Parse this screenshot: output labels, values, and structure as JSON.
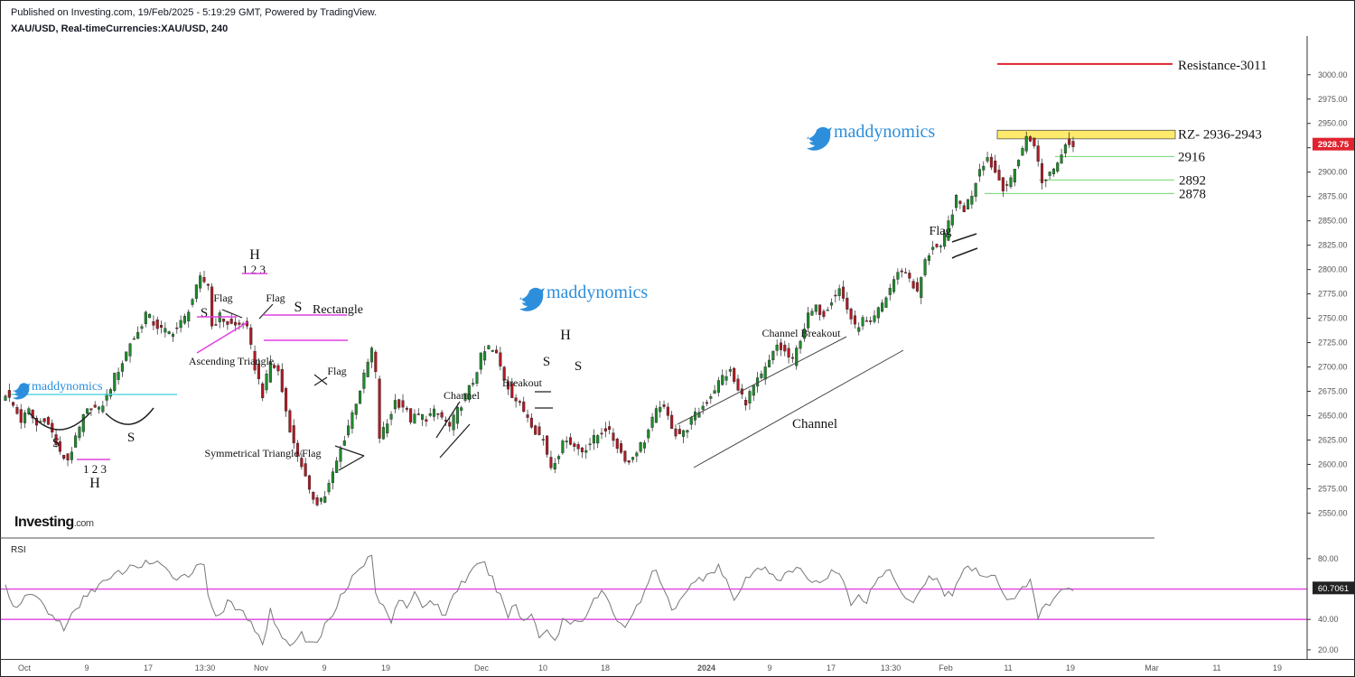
{
  "header": {
    "published": "Published on Investing.com, 19/Feb/2025 - 5:19:29 GMT, Powered by TradingView.",
    "symbol": "XAU/USD, Real-timeCurrencies:XAU/USD, 240"
  },
  "logo": {
    "text": "Investing",
    "suffix": ".com"
  },
  "watermarks": [
    "maddynomics",
    "maddynomics",
    "maddynomics"
  ],
  "chart_data": {
    "type": "candlestick",
    "price_axis": {
      "ticks": [
        "3000.00",
        "2975.00",
        "2950.00",
        "2925.00",
        "2900.00",
        "2875.00",
        "2850.00",
        "2825.00",
        "2800.00",
        "2775.00",
        "2750.00",
        "2725.00",
        "2700.00",
        "2675.00",
        "2650.00",
        "2625.00",
        "2600.00",
        "2575.00",
        "2550.00"
      ],
      "ylim": [
        2530,
        3035
      ],
      "last_price": "2928.75",
      "last_price_color": "#e0232f"
    },
    "time_axis": {
      "labels": [
        "Oct",
        "9",
        "17",
        "13:30",
        "Nov",
        "9",
        "19",
        "Dec",
        "10",
        "18",
        "2024",
        "9",
        "17",
        "13:30",
        "Feb",
        "11",
        "19",
        "Mar",
        "11",
        "19"
      ],
      "bold": "2024"
    },
    "price_path": [
      [
        0,
        2673
      ],
      [
        2,
        2660
      ],
      [
        4,
        2645
      ],
      [
        6,
        2655
      ],
      [
        8,
        2640
      ],
      [
        10,
        2648
      ],
      [
        12,
        2632
      ],
      [
        14,
        2610
      ],
      [
        16,
        2605
      ],
      [
        18,
        2625
      ],
      [
        20,
        2648
      ],
      [
        22,
        2660
      ],
      [
        24,
        2655
      ],
      [
        26,
        2670
      ],
      [
        28,
        2690
      ],
      [
        30,
        2705
      ],
      [
        32,
        2725
      ],
      [
        34,
        2735
      ],
      [
        36,
        2755
      ],
      [
        38,
        2745
      ],
      [
        40,
        2738
      ],
      [
        42,
        2735
      ],
      [
        44,
        2740
      ],
      [
        46,
        2750
      ],
      [
        48,
        2770
      ],
      [
        50,
        2790
      ],
      [
        52,
        2785
      ],
      [
        53,
        2742
      ],
      [
        55,
        2752
      ],
      [
        57,
        2745
      ],
      [
        59,
        2742
      ],
      [
        61,
        2745
      ],
      [
        62,
        2738
      ],
      [
        64,
        2700
      ],
      [
        66,
        2672
      ],
      [
        68,
        2705
      ],
      [
        70,
        2695
      ],
      [
        72,
        2655
      ],
      [
        74,
        2620
      ],
      [
        76,
        2600
      ],
      [
        78,
        2570
      ],
      [
        80,
        2562
      ],
      [
        82,
        2568
      ],
      [
        84,
        2590
      ],
      [
        86,
        2615
      ],
      [
        88,
        2640
      ],
      [
        90,
        2665
      ],
      [
        92,
        2690
      ],
      [
        94,
        2718
      ],
      [
        95,
        2692
      ],
      [
        96,
        2628
      ],
      [
        98,
        2642
      ],
      [
        100,
        2665
      ],
      [
        102,
        2660
      ],
      [
        104,
        2646
      ],
      [
        106,
        2650
      ],
      [
        108,
        2648
      ],
      [
        110,
        2653
      ],
      [
        112,
        2648
      ],
      [
        114,
        2638
      ],
      [
        116,
        2655
      ],
      [
        118,
        2670
      ],
      [
        120,
        2685
      ],
      [
        122,
        2710
      ],
      [
        124,
        2720
      ],
      [
        126,
        2712
      ],
      [
        128,
        2688
      ],
      [
        130,
        2672
      ],
      [
        132,
        2660
      ],
      [
        134,
        2650
      ],
      [
        136,
        2635
      ],
      [
        138,
        2625
      ],
      [
        140,
        2598
      ],
      [
        142,
        2612
      ],
      [
        144,
        2628
      ],
      [
        146,
        2618
      ],
      [
        148,
        2614
      ],
      [
        150,
        2622
      ],
      [
        152,
        2630
      ],
      [
        154,
        2637
      ],
      [
        156,
        2626
      ],
      [
        158,
        2612
      ],
      [
        160,
        2602
      ],
      [
        162,
        2615
      ],
      [
        164,
        2625
      ],
      [
        166,
        2645
      ],
      [
        168,
        2662
      ],
      [
        170,
        2648
      ],
      [
        172,
        2632
      ],
      [
        174,
        2632
      ],
      [
        176,
        2645
      ],
      [
        178,
        2655
      ],
      [
        180,
        2665
      ],
      [
        182,
        2678
      ],
      [
        184,
        2690
      ],
      [
        186,
        2695
      ],
      [
        188,
        2675
      ],
      [
        190,
        2665
      ],
      [
        192,
        2680
      ],
      [
        194,
        2690
      ],
      [
        196,
        2705
      ],
      [
        198,
        2722
      ],
      [
        200,
        2715
      ],
      [
        202,
        2705
      ],
      [
        204,
        2730
      ],
      [
        206,
        2752
      ],
      [
        208,
        2760
      ],
      [
        210,
        2755
      ],
      [
        212,
        2770
      ],
      [
        214,
        2780
      ],
      [
        216,
        2760
      ],
      [
        218,
        2740
      ],
      [
        220,
        2748
      ],
      [
        222,
        2742
      ],
      [
        224,
        2758
      ],
      [
        226,
        2772
      ],
      [
        228,
        2790
      ],
      [
        230,
        2800
      ],
      [
        232,
        2792
      ],
      [
        234,
        2775
      ],
      [
        236,
        2808
      ],
      [
        238,
        2825
      ],
      [
        240,
        2820
      ],
      [
        242,
        2848
      ],
      [
        244,
        2872
      ],
      [
        246,
        2862
      ],
      [
        248,
        2878
      ],
      [
        250,
        2905
      ],
      [
        252,
        2915
      ],
      [
        254,
        2900
      ],
      [
        256,
        2885
      ],
      [
        258,
        2890
      ],
      [
        260,
        2915
      ],
      [
        262,
        2935
      ],
      [
        264,
        2930
      ],
      [
        266,
        2888
      ],
      [
        268,
        2900
      ],
      [
        270,
        2910
      ],
      [
        272,
        2932
      ],
      [
        274,
        2928
      ]
    ],
    "candle_count": 275,
    "resistance": {
      "label": "Resistance-3011",
      "value": 3011,
      "color": "#e0232f"
    },
    "rz_zone": {
      "label": "RZ- 2936-2943",
      "from": 2936,
      "to": 2943,
      "color": "#fde96b"
    },
    "support_levels": [
      {
        "label": "2916",
        "value": 2916
      },
      {
        "label": "2892",
        "value": 2892
      },
      {
        "label": "2878",
        "value": 2878
      }
    ],
    "patterns": [
      "S",
      "S",
      "1 2 3",
      "H",
      "H",
      "1 2 3",
      "S",
      "Flag",
      "Ascending Triangle",
      "Flag",
      "S",
      "Rectangle",
      "Flag",
      "Symmetrical Triangle/Flag",
      "Channel",
      "Breakout",
      "H",
      "S",
      "S",
      "Channel Breakout",
      "Channel",
      "Flag"
    ],
    "rsi": {
      "label": "RSI",
      "ticks": [
        "80.00",
        "40.00",
        "20.00"
      ],
      "ylim": [
        14,
        90
      ],
      "levels": [
        60,
        40
      ],
      "last_value": "60.7061",
      "path": [
        [
          0,
          62
        ],
        [
          3,
          45
        ],
        [
          6,
          58
        ],
        [
          9,
          52
        ],
        [
          12,
          42
        ],
        [
          15,
          35
        ],
        [
          18,
          45
        ],
        [
          21,
          57
        ],
        [
          24,
          63
        ],
        [
          27,
          66
        ],
        [
          30,
          72
        ],
        [
          33,
          74
        ],
        [
          36,
          78
        ],
        [
          39,
          76
        ],
        [
          42,
          70
        ],
        [
          45,
          68
        ],
        [
          48,
          72
        ],
        [
          51,
          77
        ],
        [
          52,
          58
        ],
        [
          54,
          42
        ],
        [
          57,
          50
        ],
        [
          60,
          46
        ],
        [
          62,
          42
        ],
        [
          64,
          30
        ],
        [
          66,
          26
        ],
        [
          68,
          45
        ],
        [
          70,
          35
        ],
        [
          72,
          24
        ],
        [
          74,
          26
        ],
        [
          76,
          30
        ],
        [
          78,
          24
        ],
        [
          80,
          25
        ],
        [
          82,
          36
        ],
        [
          84,
          45
        ],
        [
          86,
          56
        ],
        [
          88,
          64
        ],
        [
          90,
          70
        ],
        [
          92,
          76
        ],
        [
          94,
          84
        ],
        [
          95,
          55
        ],
        [
          97,
          48
        ],
        [
          99,
          40
        ],
        [
          101,
          55
        ],
        [
          103,
          50
        ],
        [
          105,
          56
        ],
        [
          107,
          46
        ],
        [
          109,
          54
        ],
        [
          111,
          48
        ],
        [
          113,
          42
        ],
        [
          115,
          58
        ],
        [
          117,
          63
        ],
        [
          119,
          70
        ],
        [
          121,
          74
        ],
        [
          123,
          76
        ],
        [
          125,
          66
        ],
        [
          127,
          54
        ],
        [
          129,
          44
        ],
        [
          131,
          49
        ],
        [
          133,
          38
        ],
        [
          135,
          44
        ],
        [
          137,
          30
        ],
        [
          139,
          34
        ],
        [
          141,
          25
        ],
        [
          143,
          40
        ],
        [
          145,
          38
        ],
        [
          147,
          40
        ],
        [
          149,
          43
        ],
        [
          151,
          52
        ],
        [
          153,
          58
        ],
        [
          155,
          50
        ],
        [
          157,
          40
        ],
        [
          159,
          36
        ],
        [
          161,
          44
        ],
        [
          163,
          50
        ],
        [
          165,
          66
        ],
        [
          167,
          72
        ],
        [
          169,
          58
        ],
        [
          171,
          46
        ],
        [
          173,
          54
        ],
        [
          175,
          60
        ],
        [
          177,
          64
        ],
        [
          179,
          68
        ],
        [
          181,
          72
        ],
        [
          183,
          75
        ],
        [
          185,
          66
        ],
        [
          187,
          50
        ],
        [
          189,
          62
        ],
        [
          191,
          68
        ],
        [
          193,
          72
        ],
        [
          195,
          75
        ],
        [
          197,
          70
        ],
        [
          199,
          66
        ],
        [
          201,
          70
        ],
        [
          203,
          74
        ],
        [
          205,
          69
        ],
        [
          207,
          66
        ],
        [
          209,
          64
        ],
        [
          211,
          70
        ],
        [
          213,
          72
        ],
        [
          215,
          66
        ],
        [
          217,
          48
        ],
        [
          219,
          58
        ],
        [
          221,
          52
        ],
        [
          223,
          64
        ],
        [
          225,
          70
        ],
        [
          227,
          72
        ],
        [
          229,
          62
        ],
        [
          231,
          56
        ],
        [
          233,
          52
        ],
        [
          235,
          62
        ],
        [
          237,
          68
        ],
        [
          239,
          66
        ],
        [
          241,
          58
        ],
        [
          243,
          54
        ],
        [
          245,
          70
        ],
        [
          247,
          76
        ],
        [
          249,
          72
        ],
        [
          251,
          66
        ],
        [
          253,
          70
        ],
        [
          255,
          62
        ],
        [
          257,
          55
        ],
        [
          259,
          54
        ],
        [
          261,
          62
        ],
        [
          263,
          65
        ],
        [
          265,
          40
        ],
        [
          267,
          50
        ],
        [
          269,
          52
        ],
        [
          271,
          58
        ],
        [
          273,
          62
        ],
        [
          274,
          60.7
        ]
      ]
    }
  }
}
